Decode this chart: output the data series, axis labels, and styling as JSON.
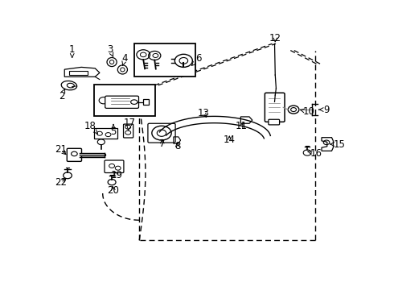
{
  "bg_color": "#ffffff",
  "line_color": "#000000",
  "label_fontsize": 8.5,
  "parts_label_positions": {
    "1": [
      0.075,
      0.895,
      0.075,
      0.935
    ],
    "2": [
      0.052,
      0.76,
      0.04,
      0.725
    ],
    "3": [
      0.21,
      0.9,
      0.198,
      0.935
    ],
    "4": [
      0.24,
      0.86,
      0.248,
      0.895
    ],
    "5": [
      0.21,
      0.6,
      0.21,
      0.565
    ],
    "6": [
      0.465,
      0.86,
      0.49,
      0.893
    ],
    "7": [
      0.37,
      0.545,
      0.37,
      0.512
    ],
    "8": [
      0.42,
      0.53,
      0.42,
      0.5
    ],
    "9": [
      0.875,
      0.665,
      0.908,
      0.665
    ],
    "10": [
      0.82,
      0.665,
      0.85,
      0.655
    ],
    "11": [
      0.64,
      0.615,
      0.628,
      0.59
    ],
    "12": [
      0.74,
      0.955,
      0.74,
      0.985
    ],
    "13": [
      0.52,
      0.62,
      0.505,
      0.65
    ],
    "14": [
      0.59,
      0.56,
      0.59,
      0.53
    ],
    "15": [
      0.918,
      0.51,
      0.95,
      0.51
    ],
    "16": [
      0.845,
      0.478,
      0.875,
      0.467
    ],
    "17": [
      0.258,
      0.57,
      0.263,
      0.605
    ],
    "18": [
      0.16,
      0.555,
      0.135,
      0.59
    ],
    "19": [
      0.21,
      0.4,
      0.22,
      0.372
    ],
    "20": [
      0.205,
      0.335,
      0.21,
      0.302
    ],
    "21": [
      0.062,
      0.455,
      0.038,
      0.485
    ],
    "22": [
      0.062,
      0.365,
      0.038,
      0.338
    ]
  }
}
